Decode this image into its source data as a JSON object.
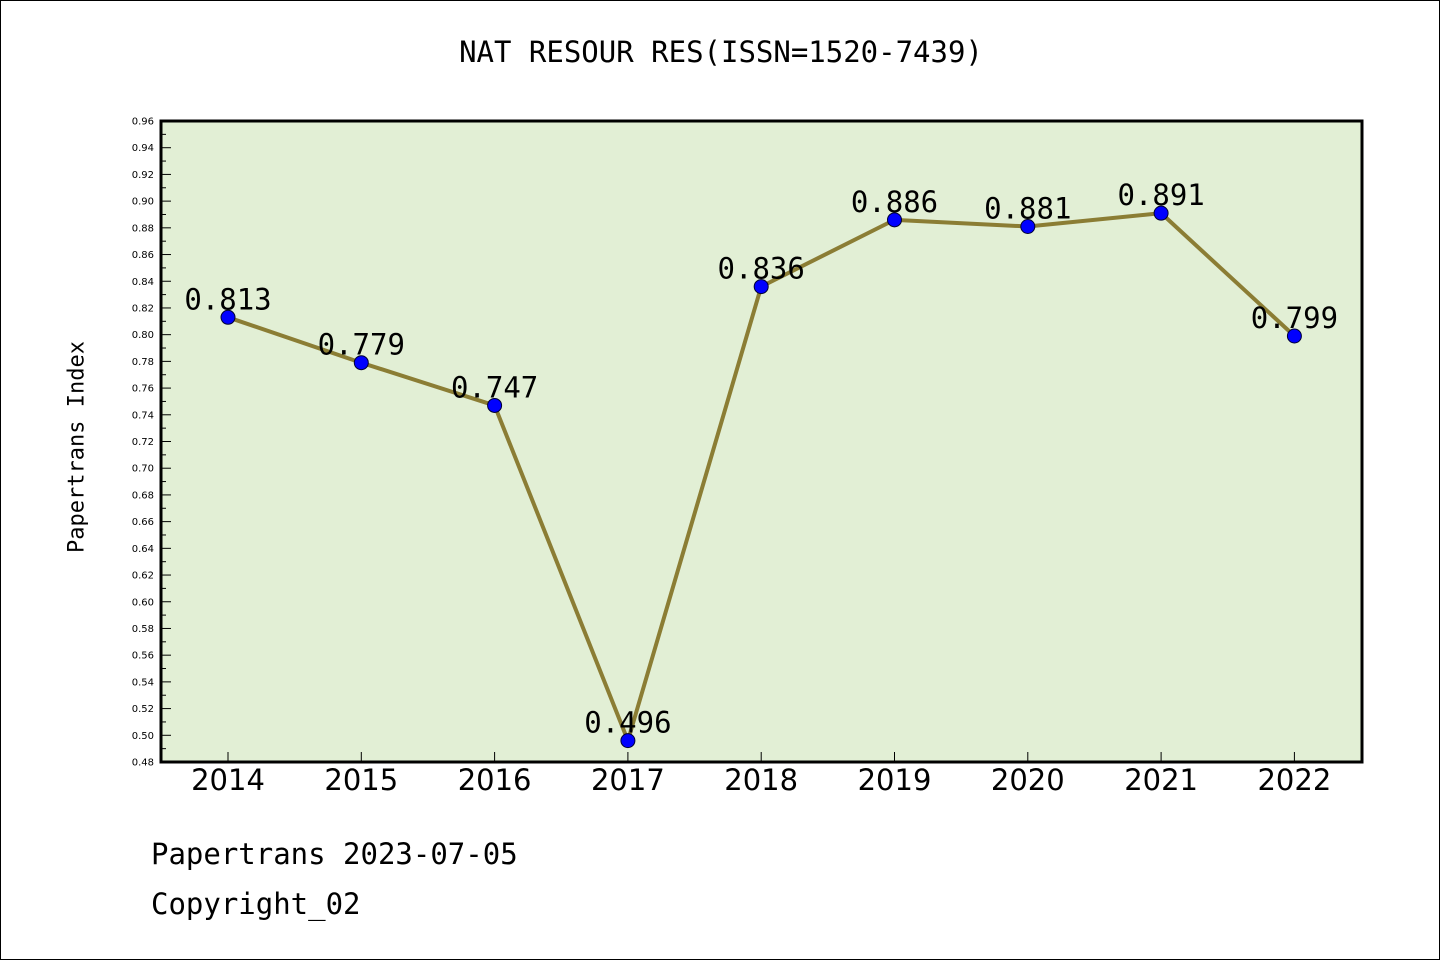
{
  "chart_data": {
    "type": "line",
    "title": "NAT RESOUR RES(ISSN=1520-7439)",
    "xlabel": "",
    "ylabel": "Papertrans Index",
    "categories": [
      "2014",
      "2015",
      "2016",
      "2017",
      "2018",
      "2019",
      "2020",
      "2021",
      "2022"
    ],
    "series": [
      {
        "values": [
          0.813,
          0.779,
          0.747,
          0.496,
          0.836,
          0.886,
          0.881,
          0.891,
          0.799
        ],
        "labels": [
          "0.813",
          "0.779",
          "0.747",
          "0.496",
          "0.836",
          "0.886",
          "0.881",
          "0.891",
          "0.799"
        ],
        "line_color": "#8b7d34",
        "marker_color": "#0000ff"
      }
    ],
    "ylim": [
      0.48,
      0.96
    ],
    "yticks": [
      "0.48",
      "0.50",
      "0.52",
      "0.54",
      "0.56",
      "0.58",
      "0.60",
      "0.62",
      "0.64",
      "0.66",
      "0.68",
      "0.70",
      "0.72",
      "0.74",
      "0.76",
      "0.78",
      "0.80",
      "0.82",
      "0.84",
      "0.86",
      "0.88",
      "0.90",
      "0.92",
      "0.94",
      "0.96"
    ],
    "grid": false,
    "legend": "none",
    "plot_background": "#e2efd5"
  },
  "footer": {
    "date_line": "Papertrans 2023-07-05",
    "copyright": "Copyright_02"
  }
}
